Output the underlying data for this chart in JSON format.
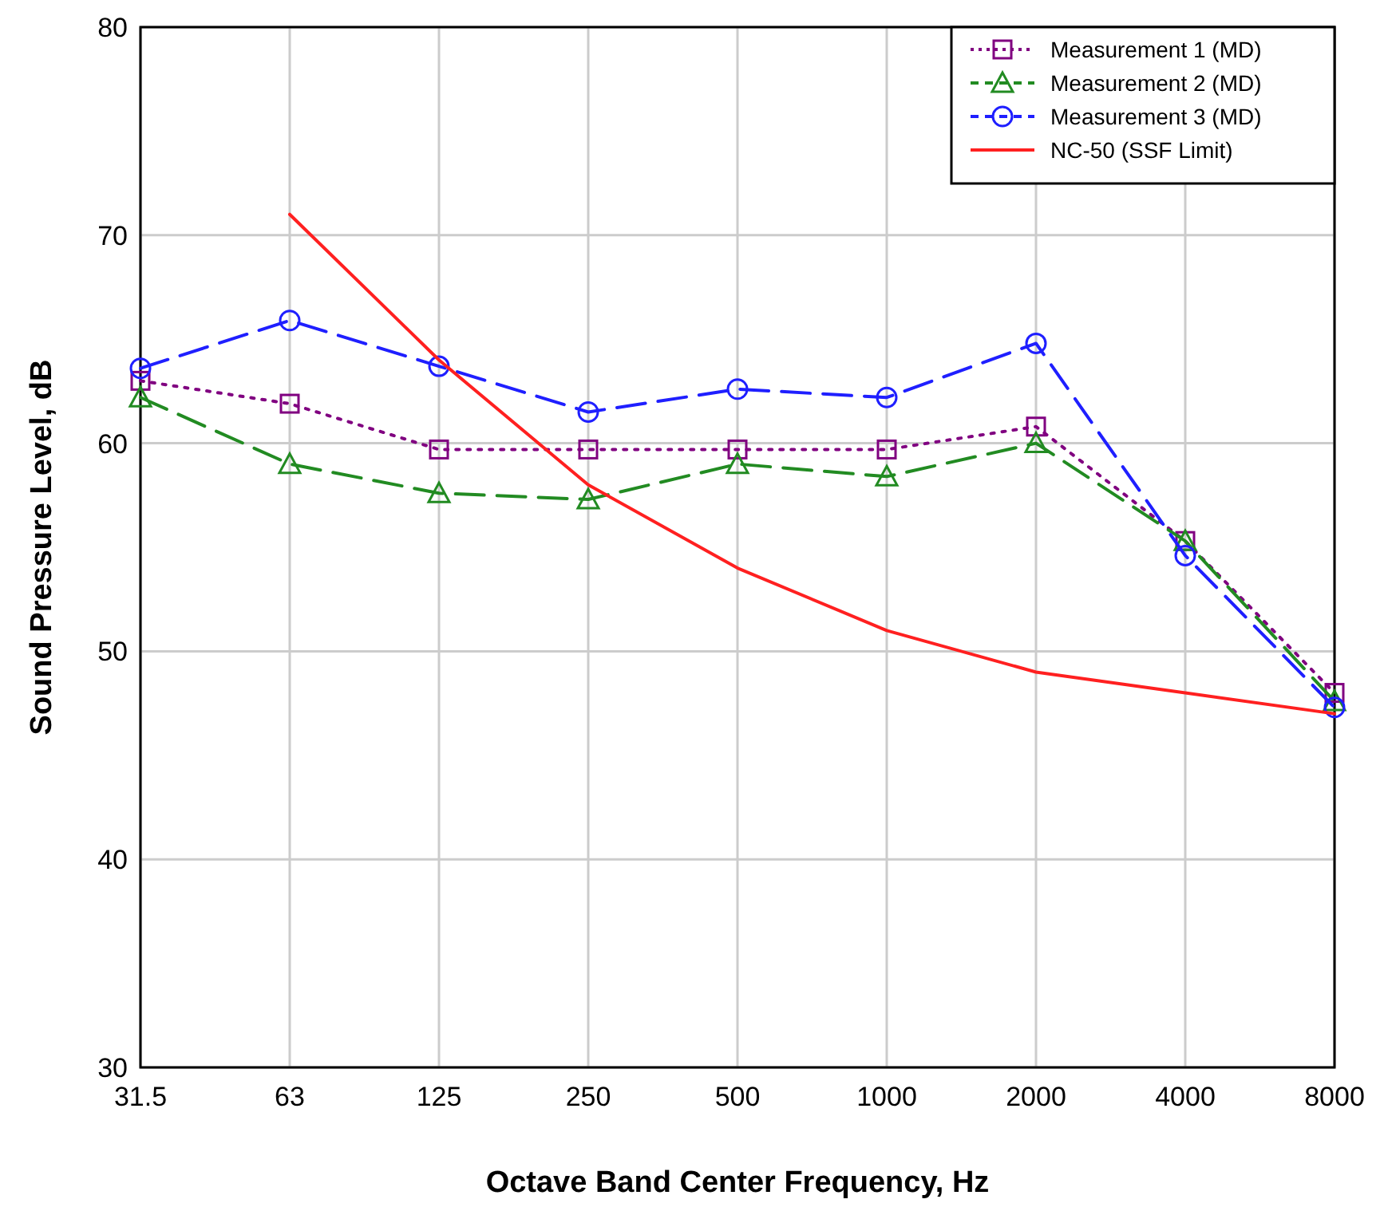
{
  "chart_data": {
    "type": "line",
    "xlabel": "Octave Band Center Frequency, Hz",
    "ylabel": "Sound Pressure Level, dB",
    "categories": [
      "31.5",
      "63",
      "125",
      "250",
      "500",
      "1000",
      "2000",
      "4000",
      "8000"
    ],
    "ylim": [
      30,
      80
    ],
    "yticks": [
      30,
      40,
      50,
      60,
      70,
      80
    ],
    "grid": true,
    "legend": "top right",
    "series": [
      {
        "name": "Measurement 1 (MD)",
        "color": "#800080",
        "marker": "square",
        "line_style": "dotted",
        "values": [
          63.0,
          61.9,
          59.7,
          59.7,
          59.7,
          59.7,
          60.8,
          55.3,
          48.0
        ]
      },
      {
        "name": "Measurement 2 (MD)",
        "color": "#228b22",
        "marker": "triangle",
        "line_style": "dashed",
        "values": [
          62.2,
          59.0,
          57.6,
          57.3,
          59.0,
          58.4,
          60.0,
          55.3,
          47.6
        ]
      },
      {
        "name": "Measurement 3 (MD)",
        "color": "#1f1fff",
        "marker": "circle",
        "line_style": "dashed",
        "values": [
          63.6,
          65.9,
          63.7,
          61.5,
          62.6,
          62.2,
          64.8,
          54.6,
          47.3
        ]
      },
      {
        "name": "NC-50 (SSF Limit)",
        "color": "#ff2020",
        "marker": "none",
        "line_style": "solid",
        "values": [
          null,
          71,
          64,
          58,
          54,
          51,
          49,
          48,
          47
        ]
      }
    ]
  }
}
